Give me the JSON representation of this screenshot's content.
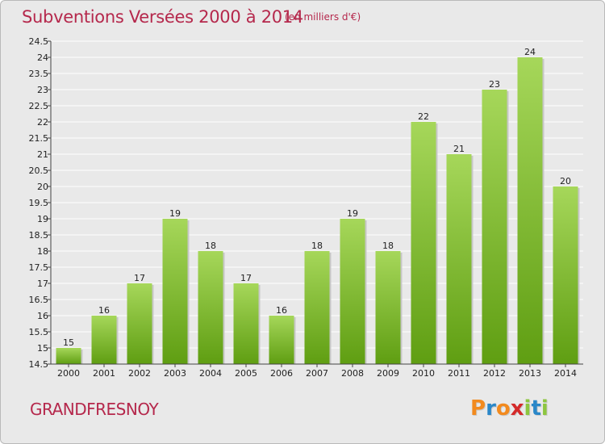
{
  "title": "Subventions Versées 2000 à 2014",
  "subtitle": "(en milliers d'€)",
  "commune": "GRANDFRESNOY",
  "logo": {
    "letters": [
      "P",
      "r",
      "o",
      "x",
      "i",
      "t",
      "i"
    ],
    "colors": [
      "#f28a1e",
      "#2a87c8",
      "#f28a1e",
      "#d42a2a",
      "#8dc63f",
      "#2a87c8",
      "#8dc63f"
    ]
  },
  "chart_data": {
    "type": "bar",
    "categories": [
      "2000",
      "2001",
      "2002",
      "2003",
      "2004",
      "2005",
      "2006",
      "2007",
      "2008",
      "2009",
      "2010",
      "2011",
      "2012",
      "2013",
      "2014"
    ],
    "values": [
      15,
      16,
      17,
      19,
      18,
      17,
      16,
      18,
      19,
      18,
      22,
      21,
      23,
      24,
      20
    ],
    "ylim": [
      14.5,
      24.5
    ],
    "yticks": [
      "14.5",
      "15",
      "15.5",
      "16",
      "16.5",
      "17",
      "17.5",
      "18",
      "18.5",
      "19",
      "19.5",
      "20",
      "20.5",
      "21",
      "21.5",
      "22",
      "22.5",
      "23",
      "23.5",
      "24",
      "24.5"
    ],
    "grid": true,
    "colors": {
      "bar_top": "#a6d75a",
      "bar_bottom": "#5f9e12",
      "grid": "#ffffff",
      "axis": "#444444"
    }
  }
}
